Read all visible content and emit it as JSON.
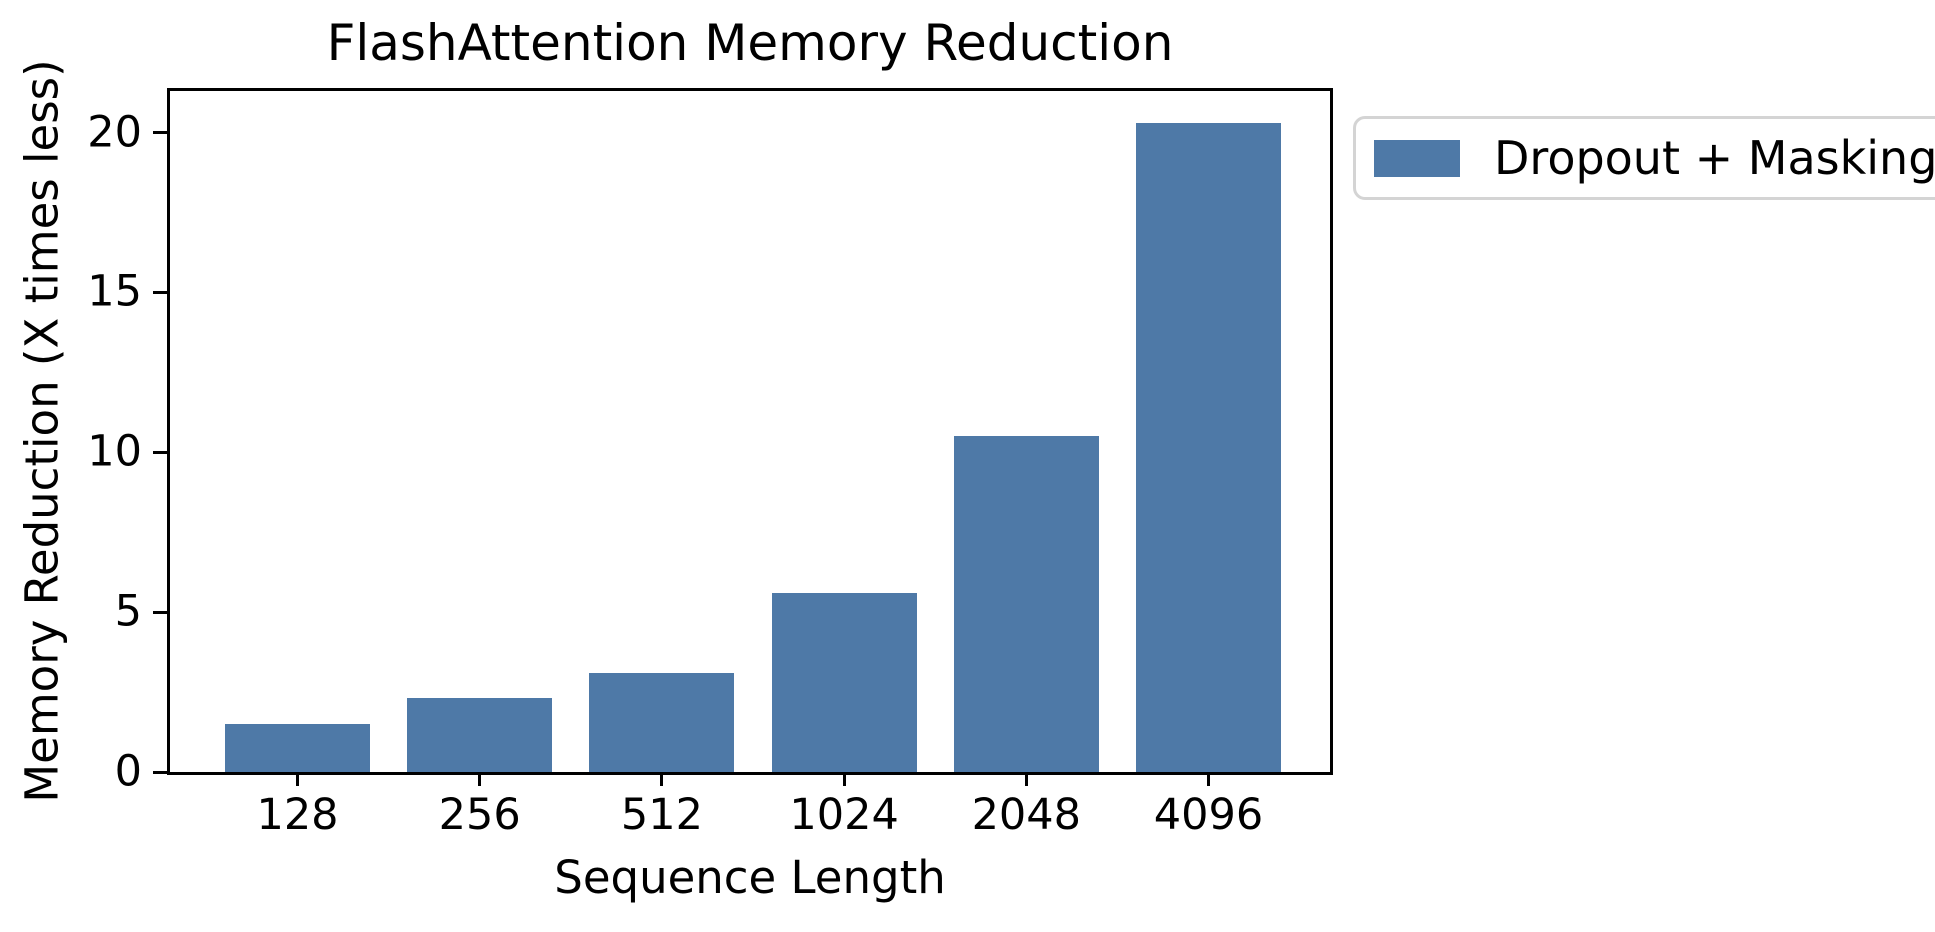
{
  "chart_data": {
    "type": "bar",
    "title": "FlashAttention Memory Reduction",
    "xlabel": "Sequence Length",
    "ylabel": "Memory Reduction (X times less)",
    "categories": [
      "128",
      "256",
      "512",
      "1024",
      "2048",
      "4096"
    ],
    "series": [
      {
        "name": "Dropout + Masking",
        "values": [
          1.5,
          2.3,
          3.1,
          5.6,
          10.5,
          20.3
        ]
      }
    ],
    "yticks": [
      0,
      5,
      10,
      15,
      20
    ],
    "ylim": [
      0,
      21.3
    ],
    "grid": false,
    "legend_position": "outside-upper-right",
    "colors": {
      "bar": "#4E79A7",
      "axis": "#000000",
      "text": "#000000",
      "legend_border": "#d4d4d4",
      "background": "#ffffff"
    }
  },
  "legend": {
    "label": "Dropout + Masking"
  }
}
